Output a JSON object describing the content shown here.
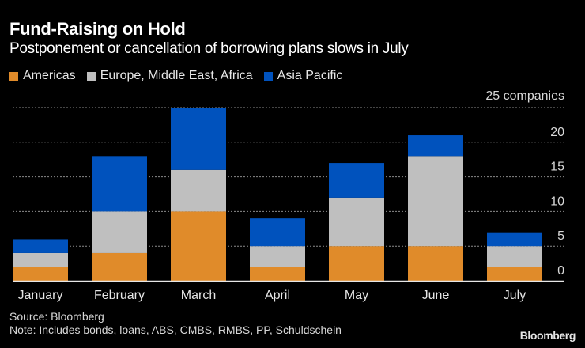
{
  "chart_data": {
    "type": "bar",
    "stacked": true,
    "title": "Fund-Raising on Hold",
    "subtitle": "Postponement or cancellation of borrowing plans slows in July",
    "categories": [
      "January",
      "February",
      "March",
      "April",
      "May",
      "June",
      "July"
    ],
    "series": [
      {
        "name": "Americas",
        "color": "#e08b2a",
        "values": [
          2,
          4,
          10,
          2,
          5,
          5,
          2
        ]
      },
      {
        "name": "Europe, Middle East, Africa",
        "color": "#bfbfbf",
        "values": [
          2,
          6,
          6,
          3,
          7,
          13,
          3
        ]
      },
      {
        "name": "Asia Pacific",
        "color": "#0052bd",
        "values": [
          2,
          8,
          9,
          4,
          5,
          3,
          2
        ]
      }
    ],
    "ylim": [
      0,
      25
    ],
    "yticks": [
      0,
      5,
      10,
      15,
      20
    ],
    "ytop_label": "25 companies",
    "ylabel": "",
    "xlabel": "",
    "grid": true,
    "legend_position": "top-left",
    "axis_side": "right"
  },
  "footer": {
    "source": "Source: Bloomberg",
    "note": "Note: Includes bonds, loans, ABS, CMBS, RMBS, PP, Schuldschein",
    "brand": "Bloomberg"
  }
}
